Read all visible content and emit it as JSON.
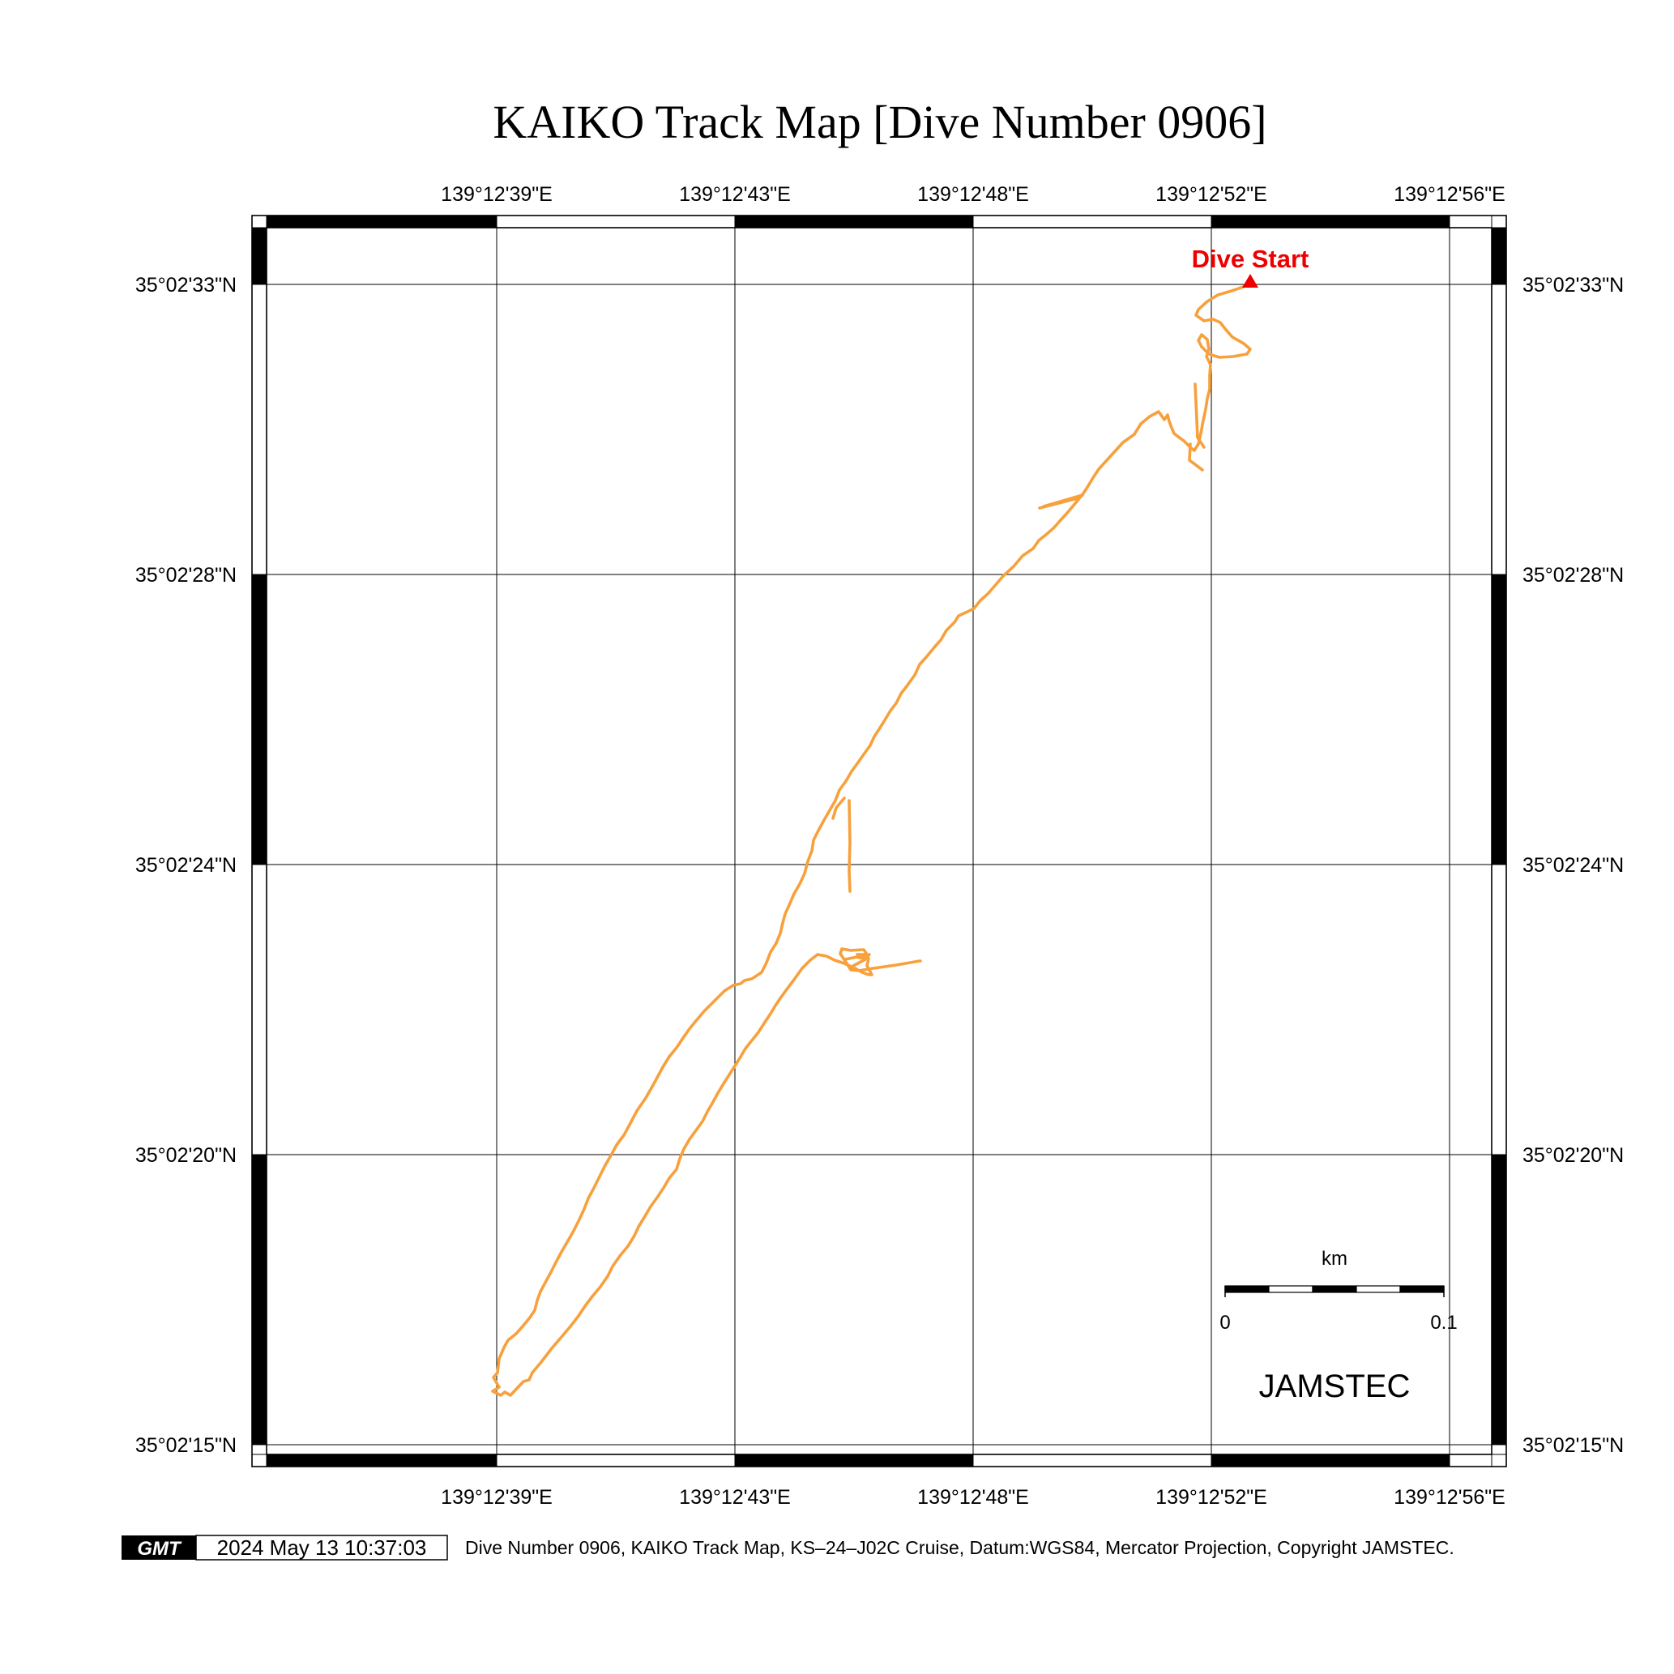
{
  "title": "KAIKO Track Map [Dive Number 0906]",
  "map": {
    "x_axis_labels": [
      "139°12'39\"E",
      "139°12'43\"E",
      "139°12'48\"E",
      "139°12'52\"E",
      "139°12'56\"E"
    ],
    "y_axis_labels": [
      "35°02'33\"N",
      "35°02'28\"N",
      "35°02'24\"N",
      "35°02'20\"N",
      "35°02'15\"N"
    ],
    "start_label": "Dive Start",
    "start_marker_color": "#ee0000",
    "track_color": "#f7a03c",
    "grid": true
  },
  "scale_bar": {
    "unit": "km",
    "min_label": "0",
    "max_label": "0.1"
  },
  "brand": "JAMSTEC",
  "footer": {
    "logo": "GMT",
    "timestamp": "2024 May 13 10:37:03",
    "caption": "Dive Number 0906, KAIKO Track Map, KS–24–J02C Cruise, Datum:WGS84, Mercator Projection, Copyright JAMSTEC."
  }
}
